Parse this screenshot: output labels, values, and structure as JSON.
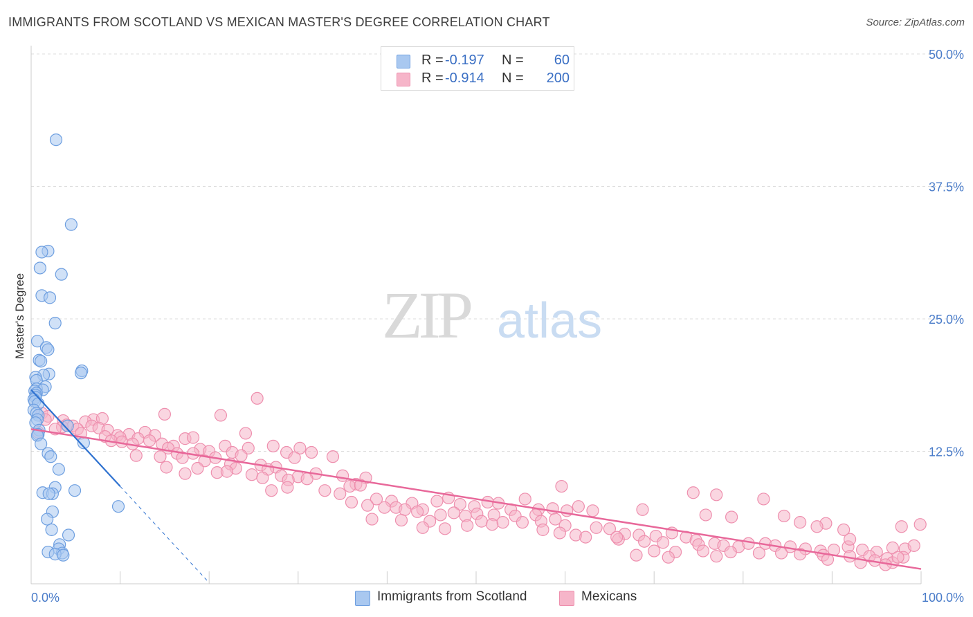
{
  "title": "IMMIGRANTS FROM SCOTLAND VS MEXICAN MASTER'S DEGREE CORRELATION CHART",
  "source": "Source: ZipAtlas.com",
  "watermark": {
    "zip": "ZIP",
    "atlas": "atlas"
  },
  "colors": {
    "blue_fill": "#a9c8f0",
    "blue_stroke": "#6e9fe0",
    "blue_line": "#2f72d0",
    "pink_fill": "#f6b5c9",
    "pink_stroke": "#ee8fae",
    "pink_line": "#e8689a",
    "tick_label": "#4a7cc9",
    "grid": "#dddddd"
  },
  "legend": {
    "rows": [
      {
        "r_label": "R =",
        "r_value": "-0.197",
        "n_label": "N =",
        "n_value": "60"
      },
      {
        "r_label": "R =",
        "r_value": "-0.914",
        "n_label": "N =",
        "n_value": "200"
      }
    ]
  },
  "bottom_legend": [
    "Immigrants from Scotland",
    "Mexicans"
  ],
  "chart_data": {
    "type": "scatter",
    "title": "IMMIGRANTS FROM SCOTLAND VS MEXICAN MASTER'S DEGREE CORRELATION CHART",
    "xlabel": "",
    "ylabel": "Master's Degree",
    "xlim": [
      0,
      100
    ],
    "ylim": [
      0,
      50
    ],
    "x_tick_labels": [
      "0.0%",
      "100.0%"
    ],
    "y_ticks": [
      12.5,
      25.0,
      37.5,
      50.0
    ],
    "y_tick_labels": [
      "12.5%",
      "25.0%",
      "37.5%",
      "50.0%"
    ],
    "grid": true,
    "series": [
      {
        "name": "Immigrants from Scotland",
        "R": -0.197,
        "N": 60,
        "trend": {
          "x0": 0,
          "y0": 18.3,
          "x1": 10,
          "y1": 9.2,
          "dash_to_x": 20
        },
        "points": [
          [
            2.8,
            41.9
          ],
          [
            4.5,
            33.9
          ],
          [
            1.9,
            31.4
          ],
          [
            1.2,
            31.3
          ],
          [
            1.0,
            29.8
          ],
          [
            3.4,
            29.2
          ],
          [
            1.2,
            27.2
          ],
          [
            2.1,
            27.0
          ],
          [
            2.7,
            24.6
          ],
          [
            0.7,
            22.9
          ],
          [
            1.7,
            22.3
          ],
          [
            1.9,
            22.1
          ],
          [
            0.9,
            21.1
          ],
          [
            1.1,
            21.0
          ],
          [
            5.7,
            20.1
          ],
          [
            5.6,
            19.9
          ],
          [
            2.0,
            19.8
          ],
          [
            1.4,
            19.7
          ],
          [
            0.5,
            19.5
          ],
          [
            0.6,
            19.2
          ],
          [
            1.6,
            18.6
          ],
          [
            0.6,
            18.4
          ],
          [
            1.3,
            18.3
          ],
          [
            0.4,
            18.2
          ],
          [
            0.6,
            18.0
          ],
          [
            0.5,
            17.8
          ],
          [
            0.5,
            17.6
          ],
          [
            0.3,
            17.4
          ],
          [
            0.4,
            17.2
          ],
          [
            0.8,
            17.0
          ],
          [
            0.3,
            16.4
          ],
          [
            0.6,
            16.1
          ],
          [
            0.8,
            15.9
          ],
          [
            0.7,
            15.5
          ],
          [
            0.5,
            15.2
          ],
          [
            4.1,
            14.9
          ],
          [
            0.9,
            14.5
          ],
          [
            0.8,
            14.1
          ],
          [
            0.7,
            14.0
          ],
          [
            5.9,
            13.3
          ],
          [
            1.1,
            13.2
          ],
          [
            1.9,
            12.3
          ],
          [
            2.2,
            12.0
          ],
          [
            3.1,
            10.8
          ],
          [
            2.7,
            9.1
          ],
          [
            4.9,
            8.8
          ],
          [
            1.3,
            8.6
          ],
          [
            2.4,
            8.5
          ],
          [
            2.0,
            8.5
          ],
          [
            9.8,
            7.3
          ],
          [
            2.4,
            6.8
          ],
          [
            1.8,
            6.1
          ],
          [
            2.3,
            5.1
          ],
          [
            4.2,
            4.6
          ],
          [
            3.2,
            3.7
          ],
          [
            3.1,
            3.3
          ],
          [
            1.9,
            3.0
          ],
          [
            3.5,
            2.9
          ],
          [
            2.7,
            2.8
          ],
          [
            3.6,
            2.7
          ]
        ]
      },
      {
        "name": "Mexicans",
        "R": -0.914,
        "N": 200,
        "trend": {
          "x0": 0,
          "y0": 14.6,
          "x1": 100,
          "y1": 1.4
        },
        "points": [
          [
            25.4,
            17.5
          ],
          [
            15.0,
            16.0
          ],
          [
            21.3,
            15.9
          ],
          [
            1.2,
            16.1
          ],
          [
            1.9,
            15.8
          ],
          [
            1.6,
            15.5
          ],
          [
            3.6,
            15.4
          ],
          [
            7.0,
            15.5
          ],
          [
            8.0,
            15.6
          ],
          [
            6.1,
            15.3
          ],
          [
            4.0,
            15.0
          ],
          [
            4.7,
            14.9
          ],
          [
            3.5,
            14.8
          ],
          [
            2.7,
            14.6
          ],
          [
            5.2,
            14.6
          ],
          [
            6.8,
            14.9
          ],
          [
            7.6,
            14.7
          ],
          [
            8.6,
            14.5
          ],
          [
            5.6,
            14.2
          ],
          [
            0.8,
            14.3
          ],
          [
            8.3,
            13.9
          ],
          [
            9.7,
            14.0
          ],
          [
            12.8,
            14.3
          ],
          [
            11.0,
            14.1
          ],
          [
            13.9,
            14.0
          ],
          [
            10.0,
            13.8
          ],
          [
            12.0,
            13.7
          ],
          [
            24.1,
            14.2
          ],
          [
            17.3,
            13.7
          ],
          [
            18.2,
            13.8
          ],
          [
            9.0,
            13.5
          ],
          [
            10.2,
            13.4
          ],
          [
            11.4,
            13.2
          ],
          [
            13.3,
            13.5
          ],
          [
            14.7,
            13.2
          ],
          [
            16.0,
            13.0
          ],
          [
            15.4,
            12.8
          ],
          [
            19.0,
            12.7
          ],
          [
            20.0,
            12.5
          ],
          [
            21.8,
            13.0
          ],
          [
            27.2,
            13.0
          ],
          [
            24.4,
            12.8
          ],
          [
            30.2,
            12.8
          ],
          [
            31.5,
            12.4
          ],
          [
            16.4,
            12.3
          ],
          [
            18.2,
            12.3
          ],
          [
            22.6,
            12.4
          ],
          [
            28.7,
            12.4
          ],
          [
            11.8,
            12.1
          ],
          [
            14.5,
            12.0
          ],
          [
            17.0,
            11.9
          ],
          [
            20.7,
            11.9
          ],
          [
            23.6,
            12.1
          ],
          [
            29.6,
            11.9
          ],
          [
            33.9,
            12.0
          ],
          [
            19.5,
            11.6
          ],
          [
            22.4,
            11.3
          ],
          [
            25.8,
            11.2
          ],
          [
            27.5,
            11.0
          ],
          [
            15.2,
            11.0
          ],
          [
            18.7,
            10.9
          ],
          [
            23.0,
            10.9
          ],
          [
            26.6,
            10.8
          ],
          [
            20.9,
            10.5
          ],
          [
            24.8,
            10.3
          ],
          [
            28.1,
            10.2
          ],
          [
            30.0,
            10.1
          ],
          [
            32.0,
            10.4
          ],
          [
            35.0,
            10.2
          ],
          [
            37.6,
            10.0
          ],
          [
            17.3,
            10.4
          ],
          [
            22.0,
            10.6
          ],
          [
            26.0,
            10.0
          ],
          [
            28.9,
            9.8
          ],
          [
            31.0,
            9.9
          ],
          [
            36.5,
            9.4
          ],
          [
            35.8,
            9.2
          ],
          [
            37.0,
            9.3
          ],
          [
            28.8,
            9.1
          ],
          [
            33.0,
            8.8
          ],
          [
            34.7,
            8.5
          ],
          [
            27.0,
            8.8
          ],
          [
            38.8,
            8.0
          ],
          [
            40.5,
            7.8
          ],
          [
            41.0,
            7.2
          ],
          [
            42.8,
            7.6
          ],
          [
            44.0,
            7.0
          ],
          [
            45.6,
            7.8
          ],
          [
            46.9,
            8.1
          ],
          [
            48.2,
            7.5
          ],
          [
            49.8,
            7.3
          ],
          [
            51.3,
            7.7
          ],
          [
            52.5,
            7.6
          ],
          [
            53.9,
            7.0
          ],
          [
            55.5,
            8.0
          ],
          [
            57.0,
            7.0
          ],
          [
            58.6,
            7.1
          ],
          [
            60.2,
            6.9
          ],
          [
            61.5,
            7.3
          ],
          [
            63.1,
            6.9
          ],
          [
            36.0,
            7.7
          ],
          [
            37.8,
            7.4
          ],
          [
            39.7,
            7.2
          ],
          [
            42.0,
            7.0
          ],
          [
            43.4,
            6.8
          ],
          [
            46.0,
            6.5
          ],
          [
            47.5,
            6.7
          ],
          [
            48.8,
            6.4
          ],
          [
            50.1,
            6.6
          ],
          [
            52.0,
            6.5
          ],
          [
            54.4,
            6.4
          ],
          [
            56.7,
            6.5
          ],
          [
            58.9,
            6.1
          ],
          [
            38.3,
            6.1
          ],
          [
            41.6,
            6.0
          ],
          [
            44.8,
            5.9
          ],
          [
            50.6,
            5.9
          ],
          [
            53.0,
            5.8
          ],
          [
            55.2,
            5.8
          ],
          [
            57.3,
            5.9
          ],
          [
            44.0,
            5.3
          ],
          [
            46.5,
            5.2
          ],
          [
            49.0,
            5.5
          ],
          [
            51.8,
            5.6
          ],
          [
            60.0,
            5.5
          ],
          [
            63.5,
            5.3
          ],
          [
            65.0,
            5.2
          ],
          [
            57.5,
            5.1
          ],
          [
            59.4,
            4.8
          ],
          [
            61.2,
            4.6
          ],
          [
            62.3,
            4.4
          ],
          [
            66.7,
            4.7
          ],
          [
            68.3,
            4.6
          ],
          [
            70.2,
            4.5
          ],
          [
            72.0,
            4.8
          ],
          [
            73.6,
            4.4
          ],
          [
            66.0,
            4.2
          ],
          [
            68.9,
            4.0
          ],
          [
            71.0,
            3.9
          ],
          [
            74.7,
            4.1
          ],
          [
            75.0,
            3.7
          ],
          [
            76.8,
            3.8
          ],
          [
            77.8,
            3.6
          ],
          [
            79.5,
            3.5
          ],
          [
            80.6,
            3.8
          ],
          [
            82.5,
            3.8
          ],
          [
            83.6,
            3.6
          ],
          [
            85.3,
            3.5
          ],
          [
            87.0,
            3.3
          ],
          [
            88.7,
            3.1
          ],
          [
            90.2,
            3.2
          ],
          [
            91.8,
            3.5
          ],
          [
            93.4,
            3.2
          ],
          [
            95.0,
            3.0
          ],
          [
            96.8,
            3.4
          ],
          [
            98.2,
            3.3
          ],
          [
            99.2,
            3.6
          ],
          [
            75.5,
            3.1
          ],
          [
            78.6,
            3.0
          ],
          [
            81.8,
            2.9
          ],
          [
            84.3,
            2.9
          ],
          [
            86.4,
            2.8
          ],
          [
            89.0,
            2.7
          ],
          [
            92.0,
            2.6
          ],
          [
            94.2,
            2.6
          ],
          [
            96.2,
            2.4
          ],
          [
            98.0,
            2.5
          ],
          [
            70.0,
            3.1
          ],
          [
            72.4,
            3.0
          ],
          [
            68.0,
            2.7
          ],
          [
            71.6,
            2.5
          ],
          [
            77.0,
            2.6
          ],
          [
            89.5,
            2.3
          ],
          [
            94.8,
            2.2
          ],
          [
            96.8,
            2.0
          ],
          [
            97.4,
            2.5
          ],
          [
            93.2,
            2.0
          ],
          [
            96.0,
            1.8
          ],
          [
            74.4,
            8.6
          ],
          [
            82.3,
            8.0
          ],
          [
            77.0,
            8.4
          ],
          [
            68.7,
            7.0
          ],
          [
            75.8,
            6.5
          ],
          [
            84.6,
            6.4
          ],
          [
            78.7,
            6.3
          ],
          [
            89.3,
            5.7
          ],
          [
            97.8,
            5.4
          ],
          [
            92.0,
            4.2
          ],
          [
            99.9,
            5.6
          ],
          [
            86.4,
            5.8
          ],
          [
            91.3,
            5.1
          ],
          [
            88.3,
            5.4
          ],
          [
            59.6,
            9.2
          ],
          [
            65.8,
            4.4
          ]
        ]
      }
    ]
  }
}
